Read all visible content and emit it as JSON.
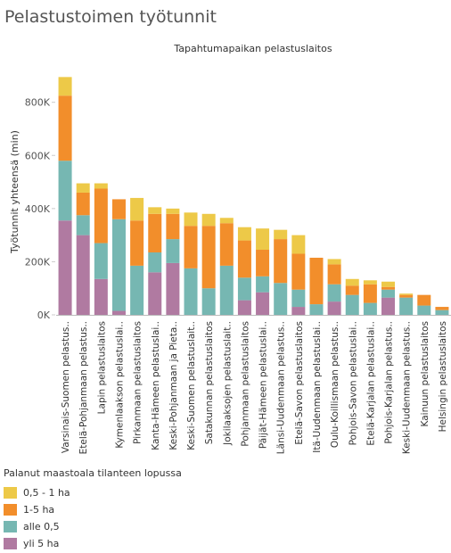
{
  "page_title": "Pelastustoimen työtunnit",
  "chart_data": {
    "type": "bar",
    "stacked": true,
    "title": "Tapahtumapaikan pelastuslaitos",
    "ylabel": "Työtunnit yhteensä (min)",
    "xlabel": "",
    "ylim": [
      0,
      960000
    ],
    "yticks": [
      0,
      200000,
      400000,
      600000,
      800000
    ],
    "ytick_labels": [
      "0K",
      "200K",
      "400K",
      "600K",
      "800K"
    ],
    "grid": false,
    "legend_position": "bottom-left",
    "categories": [
      "Varsinais-Suomen pelastus..",
      "Etelä-Pohjanmaan pelastus..",
      "Lapin pelastuslaitos",
      "Kymenlaakson pelastuslai..",
      "Pirkanmaan pelastuslaitos",
      "Kanta-Hämeen pelastuslai..",
      "Keski-Pohjanmaan ja Pieta..",
      "Keski-Suomen pelastuslait..",
      "Satakunnan pelastuslaitos",
      "Jokilaaksojen pelastuslait..",
      "Pohjanmaan pelastuslaitos",
      "Päijät-Hämeen pelastuslai..",
      "Länsi-Uudenmaan pelastus..",
      "Etelä-Savon pelastuslaitos",
      "Itä-Uudenmaan pelastuslai..",
      "Oulu-Koillismaan pelastus..",
      "Pohjois-Savon pelastuslai..",
      "Etelä-Karjalan pelastuslai..",
      "Pohjois-Karjalan pelastus..",
      "Keski-Uudenmaan pelastus..",
      "Kainuun pelastuslaitos",
      "Helsingin pelastuslaitos"
    ],
    "series": [
      {
        "name": "yli 5 ha",
        "color": "#b07aa1",
        "values": [
          355000,
          300000,
          135000,
          15000,
          0,
          160000,
          195000,
          0,
          0,
          0,
          55000,
          85000,
          0,
          30000,
          0,
          50000,
          0,
          0,
          65000,
          0,
          0,
          0
        ]
      },
      {
        "name": "alle 0,5",
        "color": "#76b7b2",
        "values": [
          225000,
          75000,
          135000,
          345000,
          185000,
          75000,
          90000,
          175000,
          100000,
          185000,
          85000,
          60000,
          120000,
          65000,
          40000,
          65000,
          75000,
          45000,
          30000,
          65000,
          35000,
          18000
        ]
      },
      {
        "name": "1-5 ha",
        "color": "#f28e2b",
        "values": [
          245000,
          85000,
          205000,
          75000,
          170000,
          145000,
          95000,
          160000,
          235000,
          160000,
          140000,
          100000,
          165000,
          135000,
          175000,
          75000,
          35000,
          70000,
          10000,
          10000,
          40000,
          12000
        ]
      },
      {
        "name": "0,5 - 1 ha",
        "color": "#edc948",
        "values": [
          70000,
          35000,
          20000,
          0,
          85000,
          25000,
          20000,
          50000,
          45000,
          20000,
          50000,
          80000,
          35000,
          70000,
          0,
          20000,
          25000,
          15000,
          20000,
          5000,
          0,
          0
        ]
      }
    ]
  },
  "legend": {
    "title": "Palanut maastoala tilanteen lopussa",
    "items": [
      {
        "label": "0,5 - 1 ha",
        "color": "#edc948"
      },
      {
        "label": "1-5 ha",
        "color": "#f28e2b"
      },
      {
        "label": "alle 0,5",
        "color": "#76b7b2"
      },
      {
        "label": "yli 5 ha",
        "color": "#b07aa1"
      }
    ]
  }
}
